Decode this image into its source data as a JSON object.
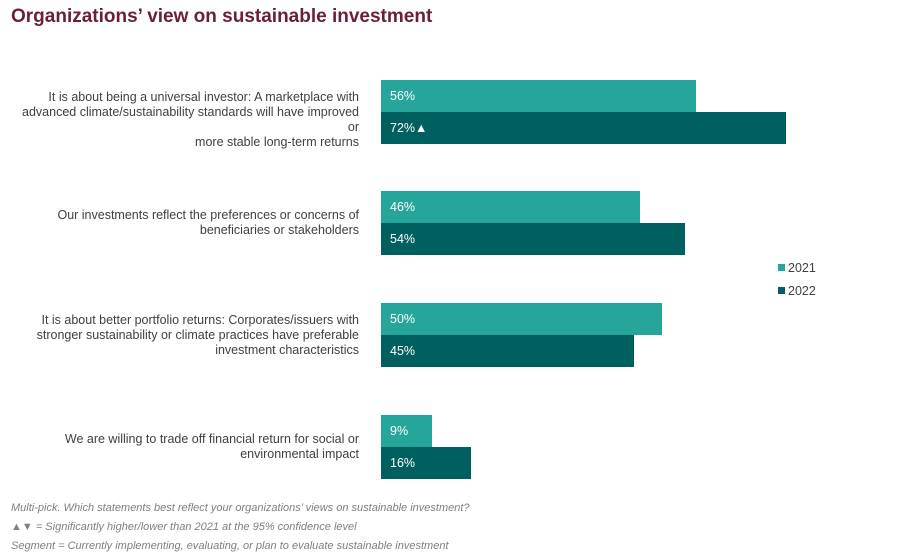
{
  "title": "Organizations’ view on sustainable investment",
  "legend": [
    {
      "label": "2021",
      "color": "#26a69a"
    },
    {
      "label": "2022",
      "color": "#005f5f"
    }
  ],
  "footnotes": [
    "Multi-pick. Which statements best reflect your organizations’ views on sustainable investment?",
    "▲▼ = Significantly higher/lower than 2021 at the 95% confidence level",
    "Segment  = Currently implementing, evaluating,  or plan to evaluate sustainable investment"
  ],
  "chart_data": {
    "type": "bar",
    "orientation": "horizontal",
    "categories": [
      "It is about being a universal investor: A marketplace with advanced climate/sustainability  standards will have improved or more stable long-term returns",
      "Our investments reflect the preferences or concerns of beneficiaries or stakeholders",
      "It is about better portfolio returns: Corporates/issuers with stronger sustainability or climate practices have preferable investment characteristics",
      "We are willing to trade off financial return for social or environmental impact"
    ],
    "category_lines": [
      [
        "It is about being a universal investor: A marketplace with",
        "advanced climate/sustainability  standards will have improved or",
        "more stable long-term returns"
      ],
      [
        "Our investments reflect the preferences or concerns of",
        "beneficiaries or stakeholders"
      ],
      [
        "It is about better portfolio returns: Corporates/issuers with",
        "stronger sustainability or climate practices have preferable",
        "investment characteristics"
      ],
      [
        "We are willing to trade off financial return for social or",
        "environmental impact"
      ]
    ],
    "series": [
      {
        "name": "2021",
        "values": [
          56,
          46,
          50,
          9
        ],
        "labels": [
          "56%",
          "46%",
          "50%",
          "9%"
        ],
        "color": "#26a69a"
      },
      {
        "name": "2022",
        "values": [
          72,
          54,
          45,
          16
        ],
        "labels": [
          "72%▲",
          "54%",
          "45%",
          "16%"
        ],
        "color": "#005f5f"
      }
    ],
    "unit": "%",
    "xlim": [
      0,
      100
    ],
    "legend_position": "right",
    "grid": false
  }
}
